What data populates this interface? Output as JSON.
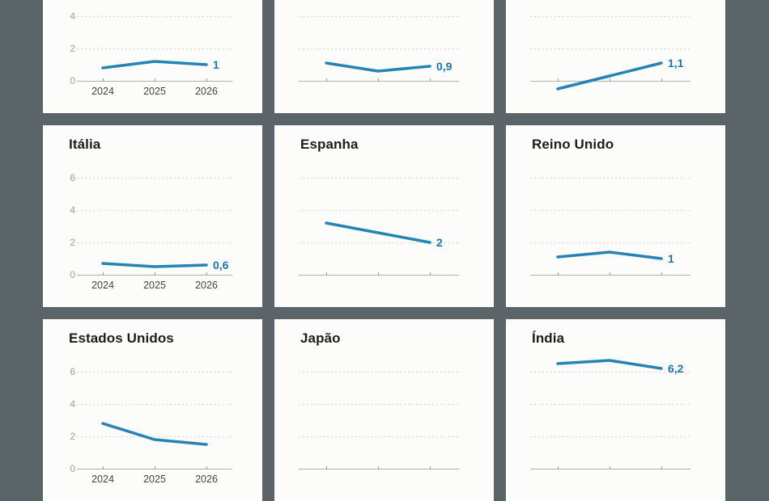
{
  "figure": {
    "name": "gdp-growth-small-multiples",
    "background": "#5b6569",
    "panel_background": "#fcfcfa"
  },
  "colors": {
    "line": "#2683b5",
    "value_label": "#1d76a8",
    "title": "#1d1d1d",
    "y_tick_label": "#9e9e9e",
    "x_tick_label": "#454545",
    "gridline": "#d8d8d4",
    "axis_line": "#b0b0ac"
  },
  "chart_data": {
    "type": "line",
    "x": [
      2024,
      2025,
      2026
    ],
    "x_tick_labels": [
      "2024",
      "2025",
      "2026"
    ],
    "y_tick_labels": [
      "0",
      "2",
      "4",
      "6"
    ],
    "ylim": [
      0,
      6
    ],
    "gridlines_at": [
      2,
      4,
      6
    ],
    "grid": "dotted-horizontal",
    "legend_position": "none",
    "layout": "3x3-small-multiples, top and bottom rows cropped by viewport",
    "panels": [
      {
        "title": "",
        "values": [
          0.8,
          1.2,
          1.0
        ],
        "end_label": "1",
        "has_axis_labels": true
      },
      {
        "title": "",
        "values": [
          1.1,
          0.6,
          0.9
        ],
        "end_label": "0,9",
        "has_axis_labels": false
      },
      {
        "title": "",
        "values": [
          -0.5,
          0.3,
          1.1
        ],
        "end_label": "1,1",
        "has_axis_labels": false
      },
      {
        "title": "Itália",
        "values": [
          0.7,
          0.5,
          0.6
        ],
        "end_label": "0,6",
        "has_axis_labels": true
      },
      {
        "title": "Espanha",
        "values": [
          3.2,
          2.6,
          2.0
        ],
        "end_label": "2",
        "has_axis_labels": false
      },
      {
        "title": "Reino Unido",
        "values": [
          1.1,
          1.4,
          1.0
        ],
        "end_label": "1",
        "has_axis_labels": false
      },
      {
        "title": "Estados Unidos",
        "values": [
          2.8,
          1.8,
          1.5
        ],
        "end_label": "",
        "has_axis_labels": true
      },
      {
        "title": "Japão",
        "values": [],
        "end_label": "",
        "has_axis_labels": false
      },
      {
        "title": "Índia",
        "values": [
          6.5,
          6.7,
          6.2
        ],
        "end_label": "6,2",
        "has_axis_labels": false
      }
    ]
  }
}
